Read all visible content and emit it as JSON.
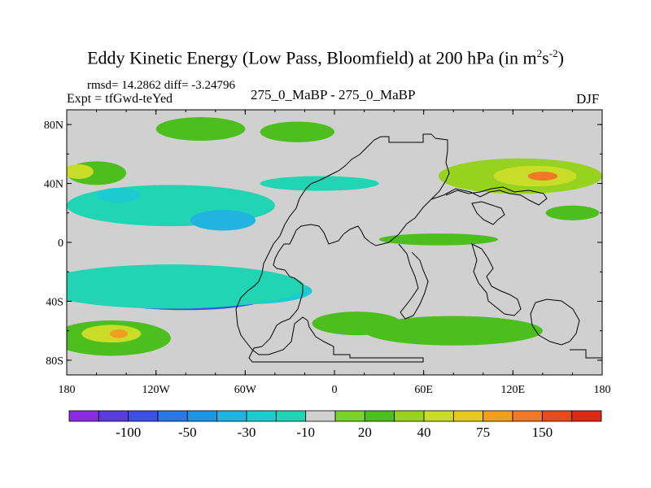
{
  "chart_data": {
    "type": "heatmap",
    "title_main": "Eddy Kinetic Energy (Low Pass, Bloomfield) at 200 hPa (in m",
    "title_exp1": "2",
    "title_mid": "s",
    "title_exp2": "-2",
    "title_end": ")",
    "rmsd_label": "rmsd= 14.2862 diff= -3.24796",
    "expt_label": "Expt = tfGwd-teYed",
    "center_label": "275_0_MaBP - 275_0_MaBP",
    "season": "DJF",
    "x_ticks": [
      {
        "value": -180,
        "label": "180"
      },
      {
        "value": -120,
        "label": "120W"
      },
      {
        "value": -60,
        "label": "60W"
      },
      {
        "value": 0,
        "label": "0"
      },
      {
        "value": 60,
        "label": "60E"
      },
      {
        "value": 120,
        "label": "120E"
      },
      {
        "value": 180,
        "label": "180"
      }
    ],
    "y_ticks": [
      {
        "value": 80,
        "label": "80N"
      },
      {
        "value": 40,
        "label": "40N"
      },
      {
        "value": 0,
        "label": "0"
      },
      {
        "value": -40,
        "label": "40S"
      },
      {
        "value": -80,
        "label": "80S"
      }
    ],
    "xlim": [
      -180,
      180
    ],
    "ylim": [
      -90,
      90
    ],
    "background_color": "#d0d0d0",
    "colorbar": {
      "colors": [
        "#8a2be2",
        "#5a3cdc",
        "#3c50e6",
        "#2a78e6",
        "#1e96e6",
        "#22b4e0",
        "#1ccbd0",
        "#20d4b4",
        "#d0d0d0",
        "#78d22a",
        "#4cbe1e",
        "#96d21e",
        "#c8dc28",
        "#e6c81e",
        "#f0a01e",
        "#f07828",
        "#e64b1e",
        "#dc2a14"
      ],
      "labels": [
        {
          "boundary": 2,
          "text": "-100"
        },
        {
          "boundary": 4,
          "text": "-50"
        },
        {
          "boundary": 6,
          "text": "-30"
        },
        {
          "boundary": 8,
          "text": "-10"
        },
        {
          "boundary": 10,
          "text": "20"
        },
        {
          "boundary": 12,
          "text": "40"
        },
        {
          "boundary": 14,
          "text": "75"
        },
        {
          "boundary": 16,
          "text": "150"
        }
      ]
    },
    "regions": [
      {
        "name": "southern-pacific-minimum",
        "lon": -100,
        "lat": -37,
        "rx": 55,
        "ry": 9,
        "level": 2
      },
      {
        "name": "southern-pacific-band",
        "lon": -110,
        "lat": -33,
        "rx": 75,
        "ry": 12,
        "level": 5
      },
      {
        "name": "southern-band-atlantic",
        "lon": -60,
        "lat": -33,
        "rx": 45,
        "ry": 9,
        "level": 6
      },
      {
        "name": "southern-band-outer",
        "lon": -110,
        "lat": -30,
        "rx": 90,
        "ry": 15,
        "level": 7
      },
      {
        "name": "north-pacific-negative",
        "lon": -110,
        "lat": 25,
        "rx": 70,
        "ry": 14,
        "level": 7
      },
      {
        "name": "north-pacific-core",
        "lon": -75,
        "lat": 15,
        "rx": 22,
        "ry": 7,
        "level": 5
      },
      {
        "name": "north-pacific-spot",
        "lon": -145,
        "lat": 32,
        "rx": 15,
        "ry": 5,
        "level": 6
      },
      {
        "name": "west-pacific-max-outer",
        "lon": 125,
        "lat": 45,
        "rx": 55,
        "ry": 12,
        "level": 11
      },
      {
        "name": "west-pacific-max-mid",
        "lon": 135,
        "lat": 45,
        "rx": 28,
        "ry": 7,
        "level": 12
      },
      {
        "name": "west-pacific-max-core",
        "lon": 140,
        "lat": 45,
        "rx": 10,
        "ry": 3,
        "level": 15
      },
      {
        "name": "north-atlantic-green",
        "lon": -160,
        "lat": 47,
        "rx": 20,
        "ry": 8,
        "level": 10
      },
      {
        "name": "north-atlantic-yellow",
        "lon": -172,
        "lat": 48,
        "rx": 10,
        "ry": 5,
        "level": 12
      },
      {
        "name": "arctic-green-1",
        "lon": -90,
        "lat": 77,
        "rx": 30,
        "ry": 8,
        "level": 10
      },
      {
        "name": "arctic-green-2",
        "lon": -25,
        "lat": 75,
        "rx": 25,
        "ry": 7,
        "level": 10
      },
      {
        "name": "northern-cyan-strip",
        "lon": -10,
        "lat": 40,
        "rx": 40,
        "ry": 5,
        "level": 7
      },
      {
        "name": "south-indian-green",
        "lon": 80,
        "lat": -60,
        "rx": 60,
        "ry": 10,
        "level": 10
      },
      {
        "name": "south-atlantic-green",
        "lon": 15,
        "lat": -55,
        "rx": 30,
        "ry": 8,
        "level": 10
      },
      {
        "name": "southern-ocean-green",
        "lon": -150,
        "lat": -65,
        "rx": 40,
        "ry": 12,
        "level": 10
      },
      {
        "name": "southern-ocean-yellow",
        "lon": -150,
        "lat": -62,
        "rx": 20,
        "ry": 6,
        "level": 12
      },
      {
        "name": "southern-ocean-orange",
        "lon": -145,
        "lat": -62,
        "rx": 6,
        "ry": 3,
        "level": 14
      },
      {
        "name": "tropical-green",
        "lon": 70,
        "lat": 2,
        "rx": 40,
        "ry": 4,
        "level": 10
      },
      {
        "name": "eastern-pacific-green",
        "lon": 160,
        "lat": 20,
        "rx": 18,
        "ry": 5,
        "level": 10
      }
    ]
  }
}
